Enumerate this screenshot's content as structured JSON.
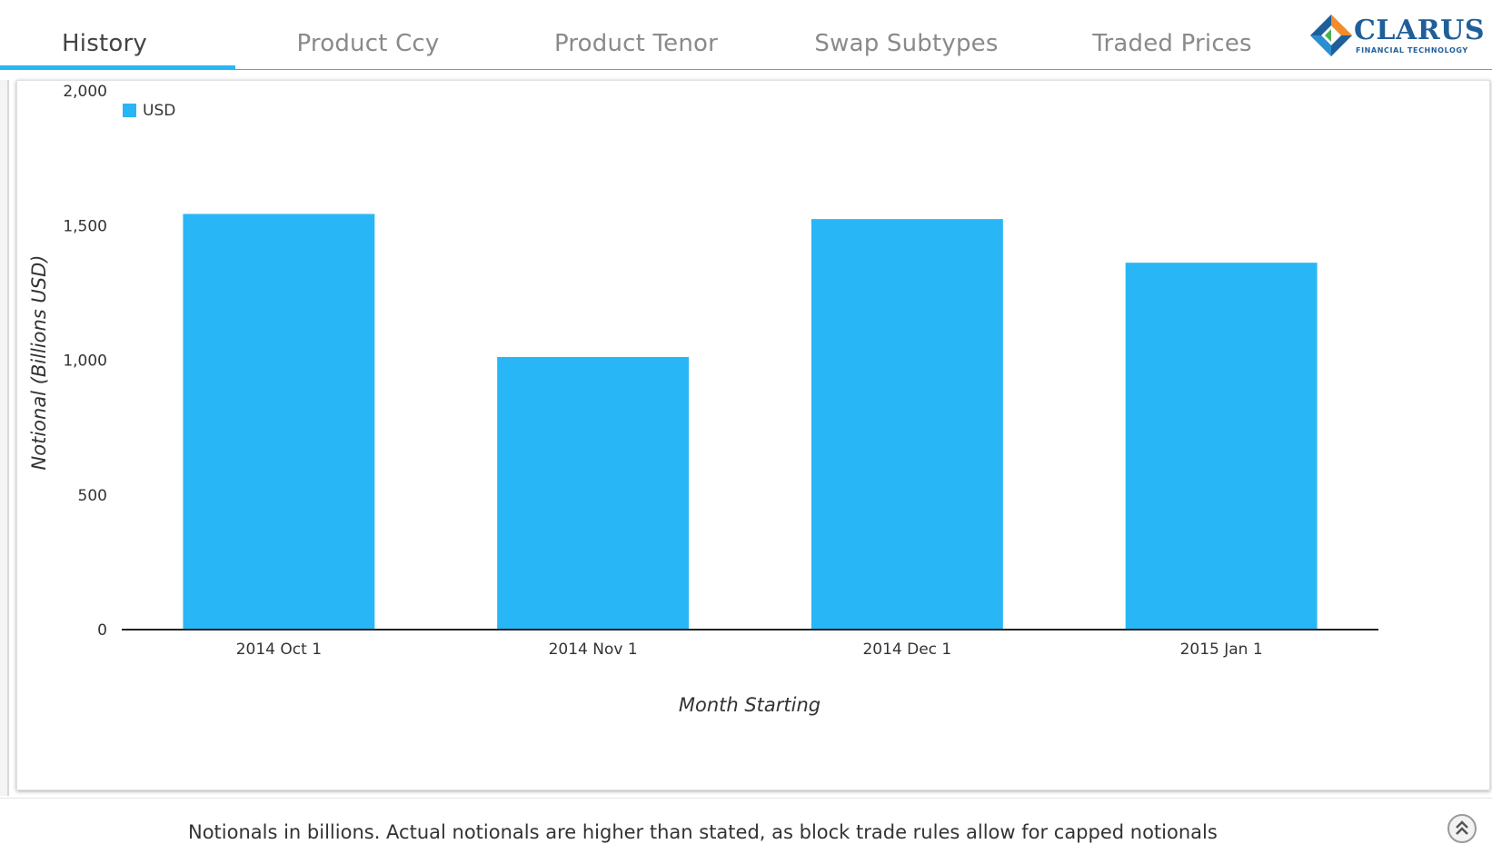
{
  "tabs": [
    {
      "label": "History",
      "active": true
    },
    {
      "label": "Product Ccy",
      "active": false
    },
    {
      "label": "Product Tenor",
      "active": false
    },
    {
      "label": "Swap Subtypes",
      "active": false
    },
    {
      "label": "Traded Prices",
      "active": false
    }
  ],
  "logo": {
    "name": "CLARUS",
    "tagline": "FINANCIAL TECHNOLOGY"
  },
  "colors": {
    "accent": "#29b6f6",
    "bar": "#29b6f6",
    "logo_blue": "#1f5f99",
    "logo_orange": "#f28c28"
  },
  "chart_data": {
    "type": "bar",
    "categories": [
      "2014 Oct 1",
      "2014 Nov 1",
      "2014 Dec 1",
      "2015 Jan 1"
    ],
    "series": [
      {
        "name": "USD",
        "values": [
          1543,
          1012,
          1524,
          1362
        ]
      }
    ],
    "xlabel": "Month Starting",
    "ylabel": "Notional (Billions USD)",
    "ylim": [
      0,
      2000
    ],
    "yticks": [
      0,
      500,
      1000,
      1500,
      2000
    ],
    "ytick_labels": [
      "0",
      "500",
      "1,000",
      "1,500",
      "2,000"
    ],
    "grid": false,
    "legend_position": "top-left"
  },
  "footer": {
    "note": "Notionals in billions. Actual notionals are higher than stated, as block trade rules allow for capped notionals"
  },
  "icons": {
    "scroll_top": "double-chevron-up-icon"
  }
}
